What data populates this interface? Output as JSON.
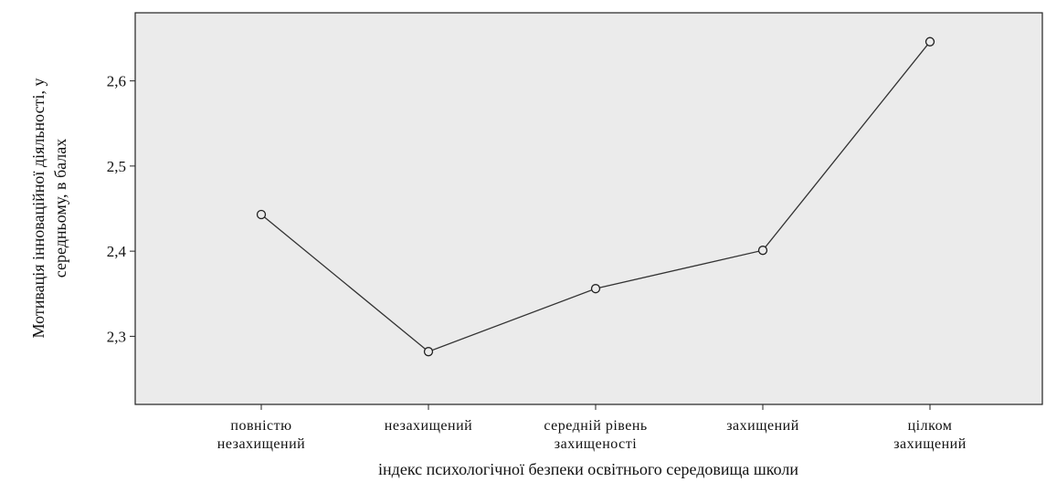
{
  "chart_data": {
    "type": "line",
    "categories": [
      [
        "повністю",
        "незахищений"
      ],
      [
        "незахищений"
      ],
      [
        "середній рівень",
        "захищеності"
      ],
      [
        "захищений"
      ],
      [
        "цілком",
        "захищений"
      ]
    ],
    "values": [
      2.443,
      2.282,
      2.356,
      2.401,
      2.646
    ],
    "yticks": [
      "2,3",
      "2,4",
      "2,5",
      "2,6"
    ],
    "ytick_values": [
      2.3,
      2.4,
      2.5,
      2.6
    ],
    "ylim": [
      2.22,
      2.68
    ],
    "xlabel": "індекс психологічної безпеки освітнього середовища школи",
    "ylabel": [
      "Мотивація інноваційної діяльності, у",
      "середньому, в балах"
    ],
    "grid": false,
    "plot_background": "#ebebeb",
    "line_color": "#333333",
    "marker": "circle"
  }
}
